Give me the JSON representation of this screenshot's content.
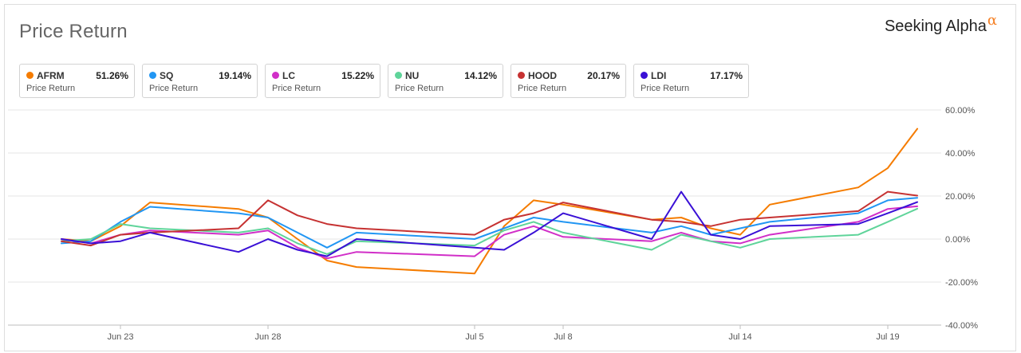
{
  "header": {
    "title": "Price Return",
    "brand": "Seeking Alpha",
    "brand_mark": "α"
  },
  "legend": [
    {
      "symbol": "AFRM",
      "value": "51.26%",
      "sub": "Price Return",
      "color": "#f57c00"
    },
    {
      "symbol": "SQ",
      "value": "19.14%",
      "sub": "Price Return",
      "color": "#2196f3"
    },
    {
      "symbol": "LC",
      "value": "15.22%",
      "sub": "Price Return",
      "color": "#d12fc8"
    },
    {
      "symbol": "NU",
      "value": "14.12%",
      "sub": "Price Return",
      "color": "#5fd49a"
    },
    {
      "symbol": "HOOD",
      "value": "20.17%",
      "sub": "Price Return",
      "color": "#c63232"
    },
    {
      "symbol": "LDI",
      "value": "17.17%",
      "sub": "Price Return",
      "color": "#3a10d6"
    }
  ],
  "chart_data": {
    "type": "line",
    "title": "Price Return",
    "ylim": [
      -40,
      60
    ],
    "yticks": [
      60,
      40,
      20,
      0,
      -20,
      -40
    ],
    "ytick_labels": [
      "60.00%",
      "40.00%",
      "20.00%",
      "0.00%",
      "-20.00%",
      "-40.00%"
    ],
    "xlim": [
      "2022-06-20",
      "2022-07-20"
    ],
    "xticks": [
      "2022-06-23",
      "2022-06-28",
      "2022-07-05",
      "2022-07-08",
      "2022-07-14",
      "2022-07-19"
    ],
    "xtick_labels": [
      "Jun 23",
      "Jun 28",
      "Jul 5",
      "Jul 8",
      "Jul 14",
      "Jul 19"
    ],
    "grid": "horizontal",
    "series": [
      {
        "name": "AFRM",
        "color": "#f57c00",
        "points": [
          [
            "2022-06-21",
            0
          ],
          [
            "2022-06-22",
            -1
          ],
          [
            "2022-06-23",
            6
          ],
          [
            "2022-06-24",
            17
          ],
          [
            "2022-06-27",
            14
          ],
          [
            "2022-06-28",
            10
          ],
          [
            "2022-06-29",
            0
          ],
          [
            "2022-06-30",
            -10
          ],
          [
            "2022-07-01",
            -13
          ],
          [
            "2022-07-05",
            -16
          ],
          [
            "2022-07-06",
            6
          ],
          [
            "2022-07-07",
            18
          ],
          [
            "2022-07-08",
            16
          ],
          [
            "2022-07-11",
            9
          ],
          [
            "2022-07-12",
            10
          ],
          [
            "2022-07-13",
            5
          ],
          [
            "2022-07-14",
            2
          ],
          [
            "2022-07-15",
            16
          ],
          [
            "2022-07-18",
            24
          ],
          [
            "2022-07-19",
            33
          ],
          [
            "2022-07-20",
            51.26
          ]
        ]
      },
      {
        "name": "SQ",
        "color": "#2196f3",
        "points": [
          [
            "2022-06-21",
            -2
          ],
          [
            "2022-06-22",
            -1
          ],
          [
            "2022-06-23",
            8
          ],
          [
            "2022-06-24",
            15
          ],
          [
            "2022-06-27",
            12
          ],
          [
            "2022-06-28",
            10
          ],
          [
            "2022-06-29",
            3
          ],
          [
            "2022-06-30",
            -4
          ],
          [
            "2022-07-01",
            3
          ],
          [
            "2022-07-05",
            0
          ],
          [
            "2022-07-06",
            5
          ],
          [
            "2022-07-07",
            10
          ],
          [
            "2022-07-08",
            8
          ],
          [
            "2022-07-11",
            3
          ],
          [
            "2022-07-12",
            6
          ],
          [
            "2022-07-13",
            2
          ],
          [
            "2022-07-14",
            5
          ],
          [
            "2022-07-15",
            8
          ],
          [
            "2022-07-18",
            12
          ],
          [
            "2022-07-19",
            18
          ],
          [
            "2022-07-20",
            19.14
          ]
        ]
      },
      {
        "name": "LC",
        "color": "#d12fc8",
        "points": [
          [
            "2022-06-21",
            0
          ],
          [
            "2022-06-22",
            -2
          ],
          [
            "2022-06-23",
            2
          ],
          [
            "2022-06-24",
            4
          ],
          [
            "2022-06-27",
            2
          ],
          [
            "2022-06-28",
            4
          ],
          [
            "2022-06-29",
            -4
          ],
          [
            "2022-06-30",
            -9
          ],
          [
            "2022-07-01",
            -6
          ],
          [
            "2022-07-05",
            -8
          ],
          [
            "2022-07-06",
            2
          ],
          [
            "2022-07-07",
            6
          ],
          [
            "2022-07-08",
            1
          ],
          [
            "2022-07-11",
            -1
          ],
          [
            "2022-07-12",
            3
          ],
          [
            "2022-07-13",
            -1
          ],
          [
            "2022-07-14",
            -2
          ],
          [
            "2022-07-15",
            2
          ],
          [
            "2022-07-18",
            8
          ],
          [
            "2022-07-19",
            14
          ],
          [
            "2022-07-20",
            15.22
          ]
        ]
      },
      {
        "name": "NU",
        "color": "#5fd49a",
        "points": [
          [
            "2022-06-21",
            -1
          ],
          [
            "2022-06-22",
            0
          ],
          [
            "2022-06-23",
            7
          ],
          [
            "2022-06-24",
            5
          ],
          [
            "2022-06-27",
            3
          ],
          [
            "2022-06-28",
            5
          ],
          [
            "2022-06-29",
            -2
          ],
          [
            "2022-06-30",
            -7
          ],
          [
            "2022-07-01",
            -1
          ],
          [
            "2022-07-05",
            -3
          ],
          [
            "2022-07-06",
            4
          ],
          [
            "2022-07-07",
            8
          ],
          [
            "2022-07-08",
            3
          ],
          [
            "2022-07-11",
            -5
          ],
          [
            "2022-07-12",
            2
          ],
          [
            "2022-07-13",
            -1
          ],
          [
            "2022-07-14",
            -4
          ],
          [
            "2022-07-15",
            0
          ],
          [
            "2022-07-18",
            2
          ],
          [
            "2022-07-19",
            8
          ],
          [
            "2022-07-20",
            14.12
          ]
        ]
      },
      {
        "name": "HOOD",
        "color": "#c63232",
        "points": [
          [
            "2022-06-21",
            -1
          ],
          [
            "2022-06-22",
            -3
          ],
          [
            "2022-06-23",
            2
          ],
          [
            "2022-06-24",
            3
          ],
          [
            "2022-06-27",
            5
          ],
          [
            "2022-06-28",
            18
          ],
          [
            "2022-06-29",
            11
          ],
          [
            "2022-06-30",
            7
          ],
          [
            "2022-07-01",
            5
          ],
          [
            "2022-07-05",
            2
          ],
          [
            "2022-07-06",
            9
          ],
          [
            "2022-07-07",
            12
          ],
          [
            "2022-07-08",
            17
          ],
          [
            "2022-07-11",
            9
          ],
          [
            "2022-07-12",
            8
          ],
          [
            "2022-07-13",
            6
          ],
          [
            "2022-07-14",
            9
          ],
          [
            "2022-07-15",
            10
          ],
          [
            "2022-07-18",
            13
          ],
          [
            "2022-07-19",
            22
          ],
          [
            "2022-07-20",
            20.17
          ]
        ]
      },
      {
        "name": "LDI",
        "color": "#3a10d6",
        "points": [
          [
            "2022-06-21",
            0
          ],
          [
            "2022-06-22",
            -2
          ],
          [
            "2022-06-23",
            -1
          ],
          [
            "2022-06-24",
            3
          ],
          [
            "2022-06-27",
            -6
          ],
          [
            "2022-06-28",
            0
          ],
          [
            "2022-06-29",
            -5
          ],
          [
            "2022-06-30",
            -8
          ],
          [
            "2022-07-01",
            0
          ],
          [
            "2022-07-05",
            -4
          ],
          [
            "2022-07-06",
            -5
          ],
          [
            "2022-07-07",
            3
          ],
          [
            "2022-07-08",
            12
          ],
          [
            "2022-07-11",
            0
          ],
          [
            "2022-07-12",
            22
          ],
          [
            "2022-07-13",
            2
          ],
          [
            "2022-07-14",
            0
          ],
          [
            "2022-07-15",
            6
          ],
          [
            "2022-07-18",
            7
          ],
          [
            "2022-07-19",
            12
          ],
          [
            "2022-07-20",
            17.17
          ]
        ]
      }
    ]
  }
}
